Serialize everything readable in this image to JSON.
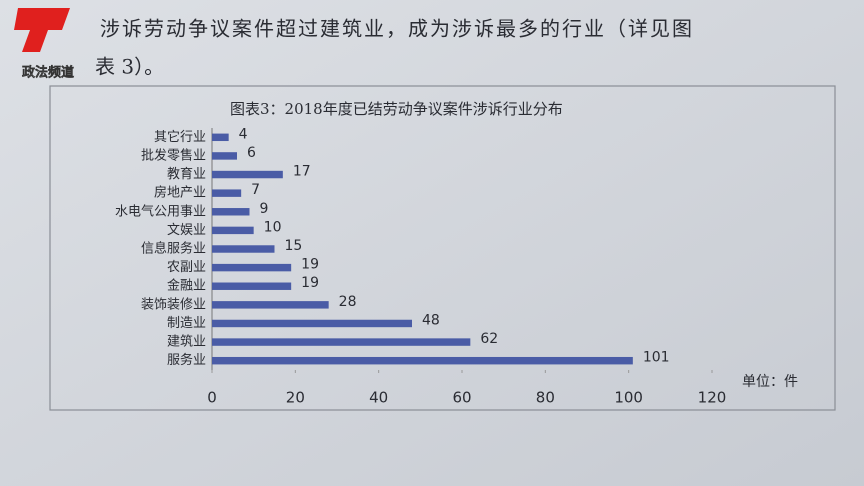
{
  "document": {
    "paragraph_lines": [
      "涉诉劳动争议案件超过建筑业，成为涉诉最多的行业（详见图",
      "表 3）。"
    ]
  },
  "logo": {
    "text": "政法频道"
  },
  "chart_data": {
    "type": "hbar",
    "title": "图表3：2018年度已结劳动争议案件涉诉行业分布",
    "categories": [
      "其它行业",
      "批发零售业",
      "教育业",
      "房地产业",
      "水电气公用事业",
      "文娱业",
      "信息服务业",
      "农副业",
      "金融业",
      "装饰装修业",
      "制造业",
      "建筑业",
      "服务业"
    ],
    "values": [
      4,
      6,
      17,
      7,
      9,
      10,
      15,
      19,
      19,
      28,
      48,
      62,
      101
    ],
    "color": "#4a5ca6",
    "xlim": [
      0,
      120
    ],
    "xticks": [
      0,
      20,
      40,
      60,
      80,
      100,
      120
    ],
    "unit_label": "单位：件",
    "grid": false
  }
}
